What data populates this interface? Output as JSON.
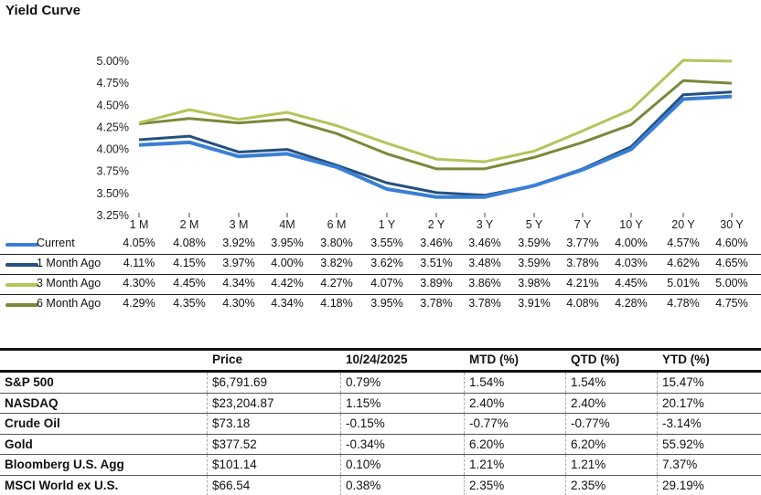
{
  "title": "Yield Curve",
  "chart_data": {
    "type": "line",
    "categories": [
      "1 M",
      "2 M",
      "3 M",
      "4M",
      "6 M",
      "1 Y",
      "2 Y",
      "3 Y",
      "5 Y",
      "7 Y",
      "10 Y",
      "20 Y",
      "30 Y"
    ],
    "ylim": [
      3.25,
      5.0
    ],
    "yticks": [
      "5.00%",
      "4.75%",
      "4.50%",
      "4.25%",
      "4.00%",
      "3.75%",
      "3.50%",
      "3.25%"
    ],
    "ytick_values": [
      5.0,
      4.75,
      4.5,
      4.25,
      4.0,
      3.75,
      3.5,
      3.25
    ],
    "grid": false,
    "legend": "table-below",
    "series": [
      {
        "name": "Current",
        "color": "#3a7fd5",
        "values": [
          4.05,
          4.08,
          3.92,
          3.95,
          3.8,
          3.55,
          3.46,
          3.46,
          3.59,
          3.77,
          4.0,
          4.57,
          4.6
        ],
        "labels": [
          "4.05%",
          "4.08%",
          "3.92%",
          "3.95%",
          "3.80%",
          "3.55%",
          "3.46%",
          "3.46%",
          "3.59%",
          "3.77%",
          "4.00%",
          "4.57%",
          "4.60%"
        ]
      },
      {
        "name": "1 Month Ago",
        "color": "#25507f",
        "values": [
          4.11,
          4.15,
          3.97,
          4.0,
          3.82,
          3.62,
          3.51,
          3.48,
          3.59,
          3.78,
          4.03,
          4.62,
          4.65
        ],
        "labels": [
          "4.11%",
          "4.15%",
          "3.97%",
          "4.00%",
          "3.82%",
          "3.62%",
          "3.51%",
          "3.48%",
          "3.59%",
          "3.78%",
          "4.03%",
          "4.62%",
          "4.65%"
        ]
      },
      {
        "name": "3 Month Ago",
        "color": "#b4c45a",
        "values": [
          4.3,
          4.45,
          4.34,
          4.42,
          4.27,
          4.07,
          3.89,
          3.86,
          3.98,
          4.21,
          4.45,
          5.01,
          5.0
        ],
        "labels": [
          "4.30%",
          "4.45%",
          "4.34%",
          "4.42%",
          "4.27%",
          "4.07%",
          "3.89%",
          "3.86%",
          "3.98%",
          "4.21%",
          "4.45%",
          "5.01%",
          "5.00%"
        ]
      },
      {
        "name": "6 Month Ago",
        "color": "#7d873a",
        "values": [
          4.29,
          4.35,
          4.3,
          4.34,
          4.18,
          3.95,
          3.78,
          3.78,
          3.91,
          4.08,
          4.28,
          4.78,
          4.75
        ],
        "labels": [
          "4.29%",
          "4.35%",
          "4.30%",
          "4.34%",
          "4.18%",
          "3.95%",
          "3.78%",
          "3.78%",
          "3.91%",
          "4.08%",
          "4.28%",
          "4.78%",
          "4.75%"
        ]
      }
    ]
  },
  "market": {
    "headers": [
      "",
      "Price",
      "10/24/2025",
      "MTD (%)",
      "QTD (%)",
      "YTD (%)"
    ],
    "rows": [
      [
        "S&P 500",
        "$6,791.69",
        "0.79%",
        "1.54%",
        "1.54%",
        "15.47%"
      ],
      [
        "NASDAQ",
        "$23,204.87",
        "1.15%",
        "2.40%",
        "2.40%",
        "20.17%"
      ],
      [
        "Crude Oil",
        "$73.18",
        "-0.15%",
        "-0.77%",
        "-0.77%",
        "-3.14%"
      ],
      [
        "Gold",
        "$377.52",
        "-0.34%",
        "6.20%",
        "6.20%",
        "55.92%"
      ],
      [
        "Bloomberg U.S. Agg",
        "$101.14",
        "0.10%",
        "1.21%",
        "1.21%",
        "7.37%"
      ],
      [
        "MSCI World ex U.S.",
        "$66.54",
        "0.38%",
        "2.35%",
        "2.35%",
        "29.19%"
      ]
    ]
  }
}
